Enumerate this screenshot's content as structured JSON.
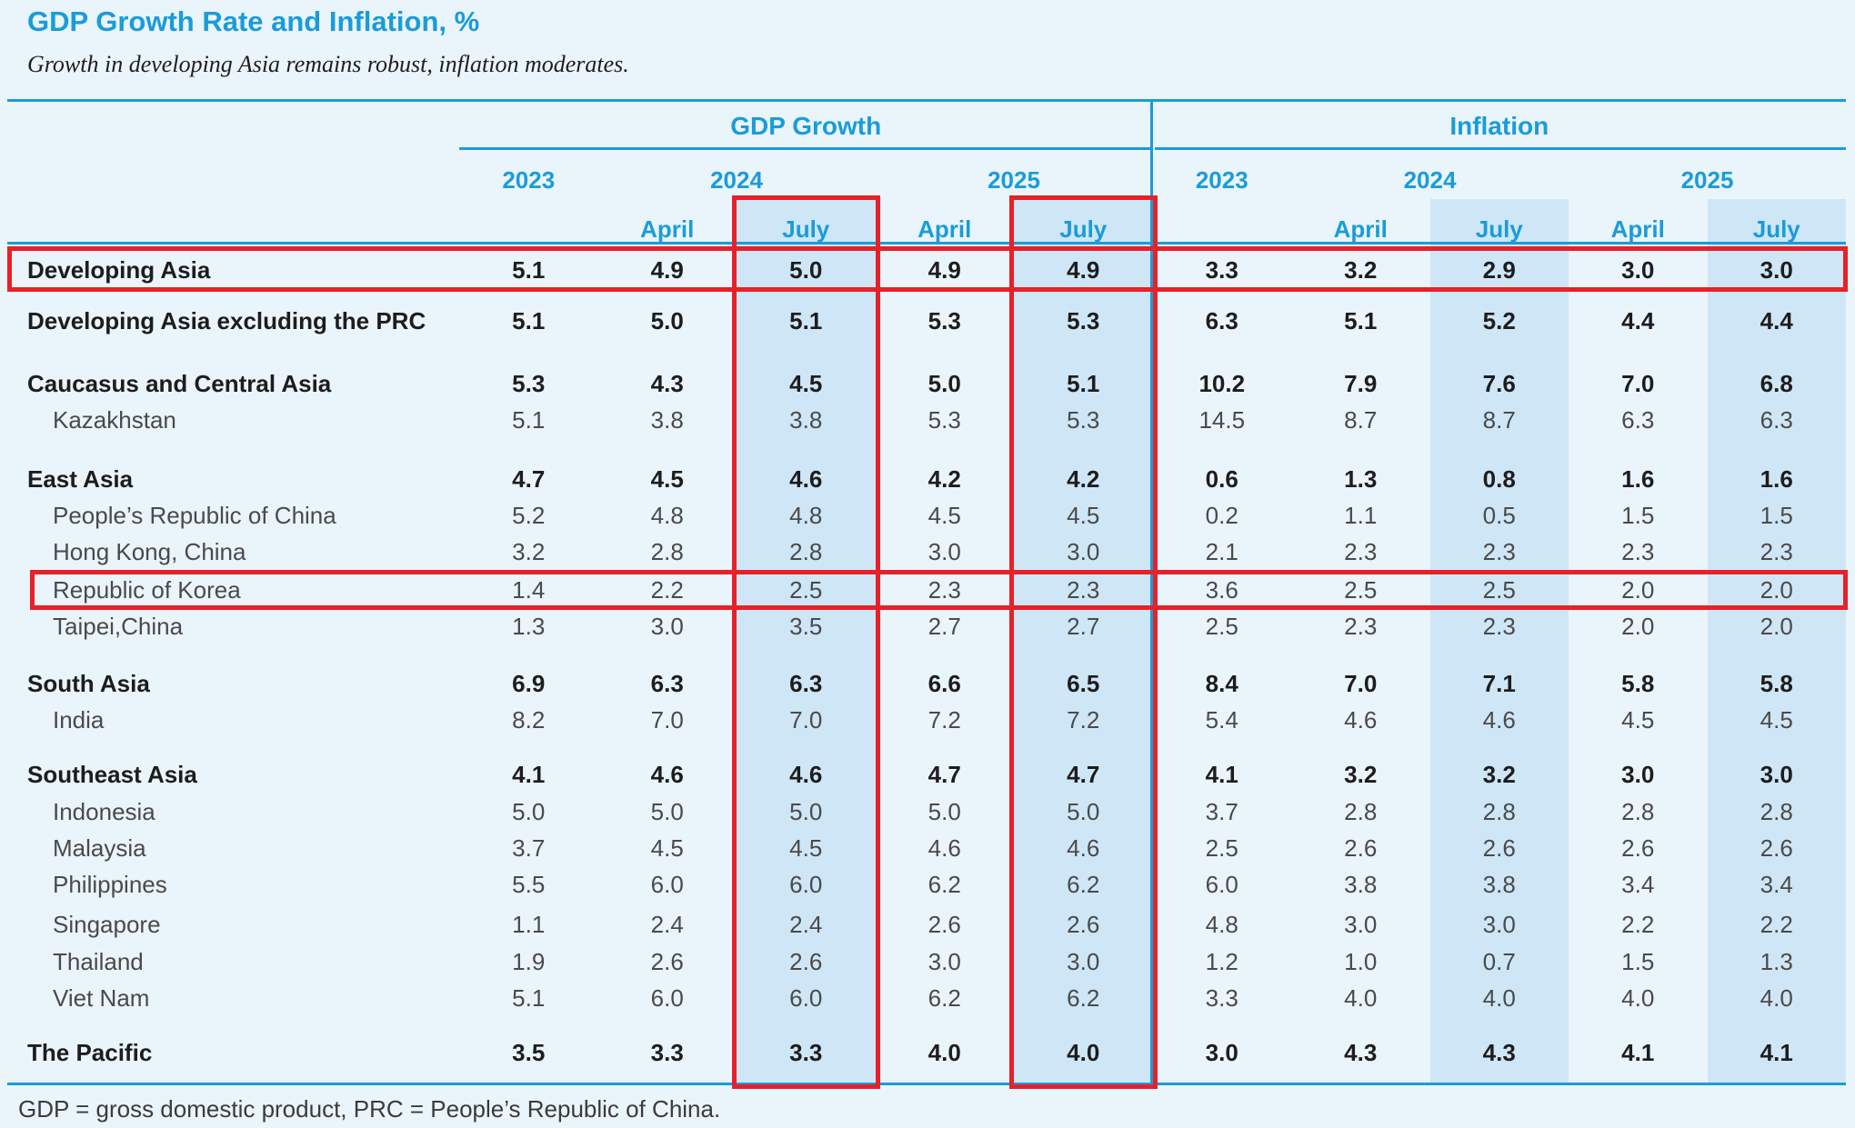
{
  "colors": {
    "accent_blue": "#1a9cd9",
    "highlight_red": "#e62129",
    "column_shade": "#cfe6f6",
    "background": "#eaf4fb"
  },
  "chart_data": {
    "type": "table",
    "title": "GDP Growth Rate and Inflation, %",
    "subtitle": "Growth in developing Asia remains robust, inflation moderates.",
    "footnote": "GDP = gross domestic product, PRC = People’s Republic of China.",
    "column_groups": [
      "GDP Growth",
      "Inflation"
    ],
    "year_labels": [
      "2023",
      "2024",
      "2025"
    ],
    "month_labels": [
      "April",
      "July"
    ],
    "columns_per_group": [
      "2023",
      "2024 April",
      "2024 July",
      "2025 April",
      "2025 July"
    ],
    "rows": [
      {
        "label": "Developing Asia",
        "bold": true,
        "indent": false,
        "gdp_growth": [
          "5.1",
          "4.9",
          "5.0",
          "4.9",
          "4.9"
        ],
        "inflation": [
          "3.3",
          "3.2",
          "2.9",
          "3.0",
          "3.0"
        ]
      },
      {
        "label": "Developing Asia excluding the PRC",
        "bold": true,
        "indent": false,
        "gdp_growth": [
          "5.1",
          "5.0",
          "5.1",
          "5.3",
          "5.3"
        ],
        "inflation": [
          "6.3",
          "5.1",
          "5.2",
          "4.4",
          "4.4"
        ]
      },
      {
        "label": "Caucasus and Central Asia",
        "bold": true,
        "indent": false,
        "gdp_growth": [
          "5.3",
          "4.3",
          "4.5",
          "5.0",
          "5.1"
        ],
        "inflation": [
          "10.2",
          "7.9",
          "7.6",
          "7.0",
          "6.8"
        ]
      },
      {
        "label": "Kazakhstan",
        "bold": false,
        "indent": true,
        "gdp_growth": [
          "5.1",
          "3.8",
          "3.8",
          "5.3",
          "5.3"
        ],
        "inflation": [
          "14.5",
          "8.7",
          "8.7",
          "6.3",
          "6.3"
        ]
      },
      {
        "label": "East Asia",
        "bold": true,
        "indent": false,
        "gdp_growth": [
          "4.7",
          "4.5",
          "4.6",
          "4.2",
          "4.2"
        ],
        "inflation": [
          "0.6",
          "1.3",
          "0.8",
          "1.6",
          "1.6"
        ]
      },
      {
        "label": "People’s Republic of China",
        "bold": false,
        "indent": true,
        "gdp_growth": [
          "5.2",
          "4.8",
          "4.8",
          "4.5",
          "4.5"
        ],
        "inflation": [
          "0.2",
          "1.1",
          "0.5",
          "1.5",
          "1.5"
        ]
      },
      {
        "label": "Hong Kong, China",
        "bold": false,
        "indent": true,
        "gdp_growth": [
          "3.2",
          "2.8",
          "2.8",
          "3.0",
          "3.0"
        ],
        "inflation": [
          "2.1",
          "2.3",
          "2.3",
          "2.3",
          "2.3"
        ]
      },
      {
        "label": "Republic of Korea",
        "bold": false,
        "indent": true,
        "gdp_growth": [
          "1.4",
          "2.2",
          "2.5",
          "2.3",
          "2.3"
        ],
        "inflation": [
          "3.6",
          "2.5",
          "2.5",
          "2.0",
          "2.0"
        ]
      },
      {
        "label": "Taipei,China",
        "bold": false,
        "indent": true,
        "gdp_growth": [
          "1.3",
          "3.0",
          "3.5",
          "2.7",
          "2.7"
        ],
        "inflation": [
          "2.5",
          "2.3",
          "2.3",
          "2.0",
          "2.0"
        ]
      },
      {
        "label": "South Asia",
        "bold": true,
        "indent": false,
        "gdp_growth": [
          "6.9",
          "6.3",
          "6.3",
          "6.6",
          "6.5"
        ],
        "inflation": [
          "8.4",
          "7.0",
          "7.1",
          "5.8",
          "5.8"
        ]
      },
      {
        "label": "India",
        "bold": false,
        "indent": true,
        "gdp_growth": [
          "8.2",
          "7.0",
          "7.0",
          "7.2",
          "7.2"
        ],
        "inflation": [
          "5.4",
          "4.6",
          "4.6",
          "4.5",
          "4.5"
        ]
      },
      {
        "label": "Southeast Asia",
        "bold": true,
        "indent": false,
        "gdp_growth": [
          "4.1",
          "4.6",
          "4.6",
          "4.7",
          "4.7"
        ],
        "inflation": [
          "4.1",
          "3.2",
          "3.2",
          "3.0",
          "3.0"
        ]
      },
      {
        "label": "Indonesia",
        "bold": false,
        "indent": true,
        "gdp_growth": [
          "5.0",
          "5.0",
          "5.0",
          "5.0",
          "5.0"
        ],
        "inflation": [
          "3.7",
          "2.8",
          "2.8",
          "2.8",
          "2.8"
        ]
      },
      {
        "label": "Malaysia",
        "bold": false,
        "indent": true,
        "gdp_growth": [
          "3.7",
          "4.5",
          "4.5",
          "4.6",
          "4.6"
        ],
        "inflation": [
          "2.5",
          "2.6",
          "2.6",
          "2.6",
          "2.6"
        ]
      },
      {
        "label": "Philippines",
        "bold": false,
        "indent": true,
        "gdp_growth": [
          "5.5",
          "6.0",
          "6.0",
          "6.2",
          "6.2"
        ],
        "inflation": [
          "6.0",
          "3.8",
          "3.8",
          "3.4",
          "3.4"
        ]
      },
      {
        "label": "Singapore",
        "bold": false,
        "indent": true,
        "gdp_growth": [
          "1.1",
          "2.4",
          "2.4",
          "2.6",
          "2.6"
        ],
        "inflation": [
          "4.8",
          "3.0",
          "3.0",
          "2.2",
          "2.2"
        ]
      },
      {
        "label": "Thailand",
        "bold": false,
        "indent": true,
        "gdp_growth": [
          "1.9",
          "2.6",
          "2.6",
          "3.0",
          "3.0"
        ],
        "inflation": [
          "1.2",
          "1.0",
          "0.7",
          "1.5",
          "1.3"
        ]
      },
      {
        "label": "Viet Nam",
        "bold": false,
        "indent": true,
        "gdp_growth": [
          "5.1",
          "6.0",
          "6.0",
          "6.2",
          "6.2"
        ],
        "inflation": [
          "3.3",
          "4.0",
          "4.0",
          "4.0",
          "4.0"
        ]
      },
      {
        "label": "The Pacific",
        "bold": true,
        "indent": false,
        "gdp_growth": [
          "3.5",
          "3.3",
          "3.3",
          "4.0",
          "4.0"
        ],
        "inflation": [
          "3.0",
          "4.3",
          "4.3",
          "4.1",
          "4.1"
        ]
      }
    ],
    "highlights": {
      "red_boxed_rows": [
        "Developing Asia",
        "Republic of Korea"
      ],
      "red_boxed_columns": [
        "GDP Growth 2024 July",
        "GDP Growth 2025 July"
      ],
      "shaded_columns": [
        "GDP Growth 2024 July",
        "GDP Growth 2025 July",
        "Inflation 2024 July",
        "Inflation 2025 July"
      ]
    }
  }
}
